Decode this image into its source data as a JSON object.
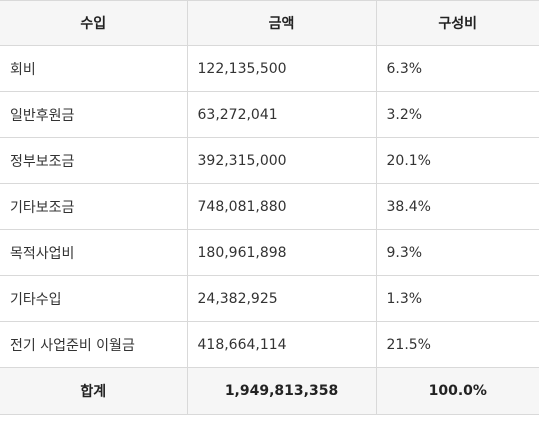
{
  "table": {
    "headers": [
      "수입",
      "금액",
      "구성비"
    ],
    "rows": [
      [
        "회비",
        "122,135,500",
        "6.3%"
      ],
      [
        "일반후원금",
        "63,272,041",
        "3.2%"
      ],
      [
        "정부보조금",
        "392,315,000",
        "20.1%"
      ],
      [
        "기타보조금",
        "748,081,880",
        "38.4%"
      ],
      [
        "목적사업비",
        "180,961,898",
        "9.3%"
      ],
      [
        "기타수입",
        "24,382,925",
        "1.3%"
      ],
      [
        "전기 사업준비 이월금",
        "418,664,114",
        "21.5%"
      ]
    ],
    "total": [
      "합계",
      "1,949,813,358",
      "100.0%"
    ]
  }
}
